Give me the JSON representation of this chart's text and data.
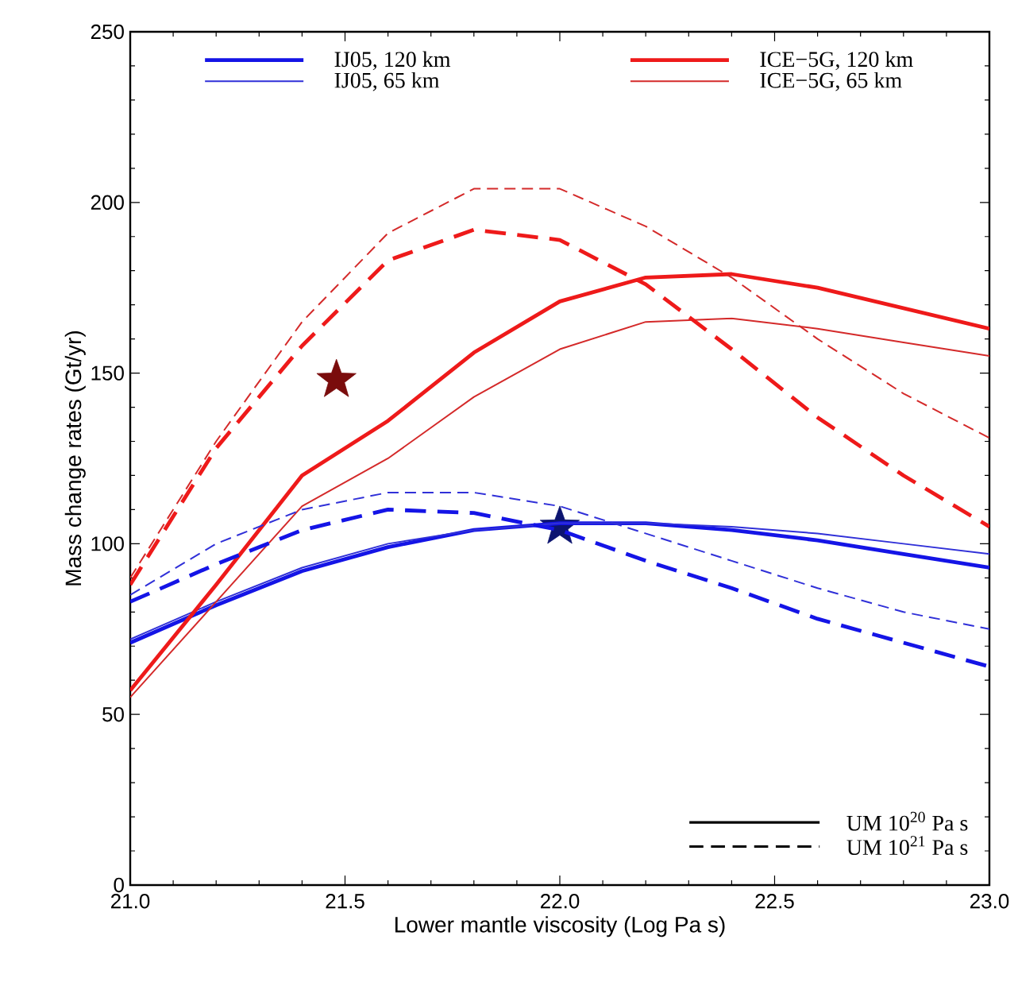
{
  "chart_data": {
    "type": "line",
    "xlabel": "Lower mantle viscosity (Log Pa s)",
    "ylabel": "Mass change rates (Gt/yr)",
    "x": [
      21.0,
      21.2,
      21.4,
      21.6,
      21.8,
      22.0,
      22.2,
      22.4,
      22.6,
      22.8,
      23.0
    ],
    "xlim": [
      21,
      23
    ],
    "ylim": [
      0,
      250
    ],
    "xticks": [
      {
        "value": 21,
        "label": "21.0"
      },
      {
        "value": 21.5,
        "label": "21.5"
      },
      {
        "value": 22,
        "label": "22.0"
      },
      {
        "value": 22.5,
        "label": "22.5"
      },
      {
        "value": 23,
        "label": "23.0"
      }
    ],
    "yticks": [
      0,
      50,
      100,
      150,
      200,
      250
    ],
    "marker": "none",
    "legend": "top",
    "series": [
      {
        "name": "IJ05, 120 km",
        "color": "#1414e6",
        "line_style": "solid",
        "values": [
          71,
          82,
          92,
          99,
          104,
          106,
          106,
          104,
          101,
          97,
          93
        ]
      },
      {
        "name": "IJ05, 65 km",
        "color": "#3030d8",
        "line_style": "solid",
        "values": [
          72,
          83,
          93,
          100,
          104,
          106,
          106,
          105,
          103,
          100,
          97
        ]
      },
      {
        "name": "ICE−5G, 120 km",
        "color": "#ee1a1a",
        "line_style": "solid",
        "values": [
          57,
          88,
          120,
          136,
          156,
          171,
          178,
          179,
          175,
          169,
          163
        ]
      },
      {
        "name": "ICE−5G, 65 km",
        "color": "#d42a2a",
        "line_style": "solid",
        "values": [
          55,
          83,
          111,
          125,
          143,
          157,
          165,
          166,
          163,
          159,
          155
        ]
      },
      {
        "color": "#1414e6",
        "line_style": "dashed",
        "values": [
          83,
          94,
          104,
          110,
          109,
          104,
          95,
          87,
          78,
          71,
          64
        ]
      },
      {
        "color": "#3030d8",
        "line_style": "dashed",
        "values": [
          85,
          100,
          110,
          115,
          115,
          111,
          103,
          95,
          87,
          80,
          75
        ]
      },
      {
        "color": "#ee1a1a",
        "line_style": "dashed",
        "values": [
          88,
          128,
          158,
          183,
          192,
          189,
          176,
          157,
          137,
          120,
          105
        ]
      },
      {
        "color": "#d42a2a",
        "line_style": "dashed",
        "values": [
          90,
          130,
          165,
          191,
          204,
          204,
          193,
          178,
          160,
          144,
          131
        ]
      },
      {
        "type": "scatter",
        "marker": "star",
        "color": "#7a0c0c",
        "x": [
          21.48
        ],
        "values": [
          148
        ]
      },
      {
        "type": "scatter",
        "marker": "star",
        "color": "#0c1470",
        "x": [
          22.0
        ],
        "values": [
          105
        ]
      }
    ],
    "annotations": [
      "UM 10$^{20}$ Pa s",
      "UM 10$^{21}$ Pa s"
    ]
  }
}
